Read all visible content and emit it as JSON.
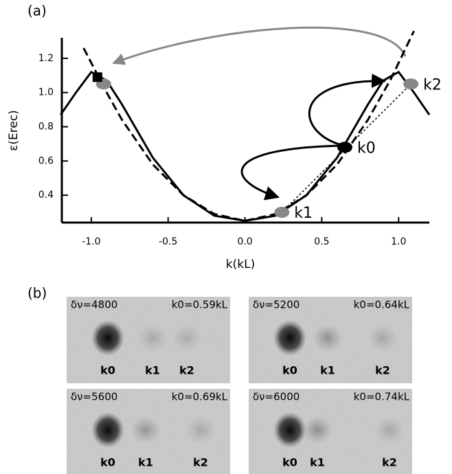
{
  "chart_data": {
    "type": "line",
    "panel_label": "(a)",
    "xlabel": "k(kL)",
    "ylabel": "ε(Erec)",
    "xlim": [
      -1.25,
      1.2
    ],
    "ylim": [
      0.24,
      1.3
    ],
    "xticks": [
      {
        "value": -1,
        "label": "-1.0"
      },
      -0.5,
      {
        "value": 0,
        "label": "0.0"
      },
      0.5,
      {
        "value": 1,
        "label": "1.0"
      }
    ],
    "yticks": [
      0.4,
      0.6,
      0.8,
      {
        "value": 1,
        "label": "1.0"
      },
      1.2
    ],
    "series": [
      {
        "color": "#000000",
        "style": "solid",
        "x": [
          -1.2,
          -1.1,
          -1.0,
          -0.9,
          -0.8,
          -0.6,
          -0.4,
          -0.2,
          0,
          0.2,
          0.4,
          0.6,
          0.8,
          0.9,
          1.0,
          1.1,
          1.2
        ],
        "values": [
          0.87,
          1.0,
          1.12,
          1.07,
          0.93,
          0.62,
          0.4,
          0.28,
          0.25,
          0.28,
          0.4,
          0.62,
          0.93,
          1.07,
          1.12,
          1.0,
          0.87
        ]
      },
      {
        "color": "#000000",
        "style": "dashed",
        "x": [
          -1.05,
          -0.9,
          -0.8,
          -0.6,
          -0.4,
          -0.2,
          0,
          0.2,
          0.4,
          0.6,
          0.8,
          0.95,
          1.1
        ],
        "values": [
          1.26,
          1.0,
          0.84,
          0.58,
          0.4,
          0.29,
          0.25,
          0.29,
          0.4,
          0.58,
          0.84,
          1.08,
          1.36
        ]
      }
    ],
    "points": [
      {
        "label": "k0",
        "x": 0.65,
        "y": 0.68,
        "color": "#000000",
        "marker": "circle"
      },
      {
        "label": "k1",
        "x": 0.24,
        "y": 0.3,
        "color": "#888888",
        "marker": "circle"
      },
      {
        "label": "k2",
        "x": 1.08,
        "y": 1.05,
        "color": "#888888",
        "marker": "circle"
      },
      {
        "x": -0.92,
        "y": 1.05,
        "color": "#888888",
        "marker": "circle"
      },
      {
        "x": -0.96,
        "y": 1.09,
        "color": "#000000",
        "marker": "square"
      }
    ]
  },
  "images": {
    "panel_label": "(b)",
    "panels": [
      {
        "detuning": "δν=4800",
        "momentum": "k0=0.59kL",
        "peaks": [
          "k0",
          "k1",
          "k2"
        ]
      },
      {
        "detuning": "δν=5200",
        "momentum": "k0=0.64kL",
        "peaks": [
          "k0",
          "k1",
          "k2"
        ]
      },
      {
        "detuning": "δν=5600",
        "momentum": "k0=0.69kL",
        "peaks": [
          "k0",
          "k1",
          "k2"
        ]
      },
      {
        "detuning": "δν=6000",
        "momentum": "k0=0.74kL",
        "peaks": [
          "k0",
          "k1",
          "k2"
        ]
      }
    ]
  }
}
